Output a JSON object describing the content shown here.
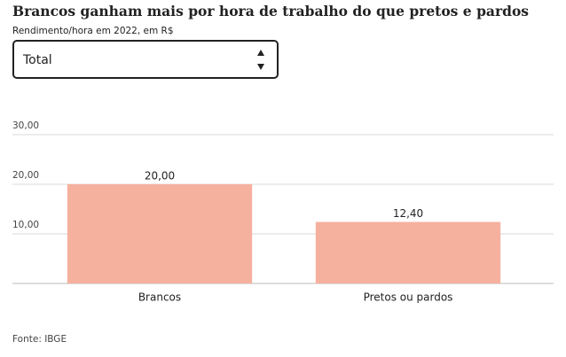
{
  "dropdown": {
    "selected": "Total"
  },
  "chart_data": {
    "type": "bar",
    "title": "Brancos ganham mais por hora de trabalho do que pretos e pardos",
    "subtitle": "Rendimento/hora em 2022, em R$",
    "source": "Fonte: IBGE",
    "categories": [
      "Brancos",
      "Pretos ou pardos"
    ],
    "values": [
      20,
      12.4
    ],
    "value_labels": [
      "20,00",
      "12,40"
    ],
    "color": "#f6b09e",
    "ylim": [
      0,
      30
    ],
    "yticks": [
      {
        "value": 10,
        "label": "10,00"
      },
      {
        "value": 20,
        "label": "20,00"
      },
      {
        "value": 30,
        "label": "30,00"
      }
    ],
    "grid": true
  }
}
